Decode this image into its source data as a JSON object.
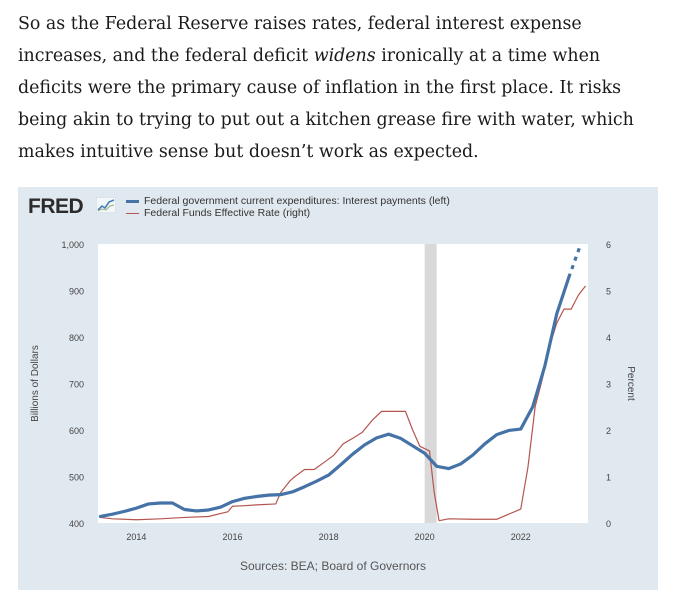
{
  "article": {
    "text_part1": "So as the Federal Reserve raises rates, federal interest expense increases, and the federal deficit ",
    "text_emphasis": "widens",
    "text_part2": " ironically at a time when deficits were the primary cause of inflation in the first place. It risks being akin to trying to put out a kitchen grease fire with water, which makes intuitive sense but doesn’t work as expected."
  },
  "figure": {
    "logo_text": "FRED",
    "logo_icon": "chart-trend-icon",
    "sources": "Sources: BEA; Board of Governors"
  },
  "chart_data": {
    "type": "line",
    "recession_shading": [
      2020.0,
      2020.25
    ],
    "xlim": [
      2013.2,
      2023.4
    ],
    "x_ticks": [
      2014,
      2016,
      2018,
      2020,
      2022
    ],
    "x_tick_labels": [
      "2014",
      "2016",
      "2018",
      "2020",
      "2022"
    ],
    "ylim_left": [
      400,
      1000
    ],
    "y_ticks_left": [
      400,
      500,
      600,
      700,
      800,
      900,
      1000
    ],
    "y_tick_labels_left": [
      "400",
      "500",
      "600",
      "700",
      "800",
      "900",
      "1,000"
    ],
    "ylabel_left": "Billions of Dollars",
    "ylim_right": [
      0,
      6
    ],
    "y_ticks_right": [
      0,
      1,
      2,
      3,
      4,
      5,
      6
    ],
    "y_tick_labels_right": [
      "0",
      "1",
      "2",
      "3",
      "4",
      "5",
      "6"
    ],
    "ylabel_right": "Percent",
    "grid": false,
    "legend_position": "top-left",
    "series": [
      {
        "name": "Federal government current expenditures: Interest payments (left)",
        "axis": "left",
        "color": "#4572a7",
        "x": [
          2013.25,
          2013.5,
          2013.75,
          2014.0,
          2014.25,
          2014.5,
          2014.75,
          2015.0,
          2015.25,
          2015.5,
          2015.75,
          2016.0,
          2016.25,
          2016.5,
          2016.75,
          2017.0,
          2017.25,
          2017.5,
          2017.75,
          2018.0,
          2018.25,
          2018.5,
          2018.75,
          2019.0,
          2019.25,
          2019.5,
          2019.75,
          2020.0,
          2020.25,
          2020.5,
          2020.75,
          2021.0,
          2021.25,
          2021.5,
          2021.75,
          2022.0,
          2022.25,
          2022.5,
          2022.75,
          2023.0
        ],
        "values": [
          414,
          419,
          425,
          432,
          441,
          443,
          443,
          429,
          426,
          428,
          434,
          446,
          453,
          457,
          460,
          461,
          467,
          478,
          490,
          503,
          525,
          548,
          568,
          583,
          591,
          582,
          566,
          550,
          522,
          517,
          527,
          546,
          570,
          590,
          599,
          602,
          650,
          737,
          850,
          928
        ],
        "projected_x": [
          2023.0,
          2023.25
        ],
        "projected_values": [
          928,
          1000
        ]
      },
      {
        "name": "Federal Funds Effective Rate (right)",
        "axis": "right",
        "color": "#b5554f",
        "x": [
          2013.25,
          2013.5,
          2013.75,
          2014.0,
          2014.5,
          2015.0,
          2015.5,
          2015.9,
          2016.0,
          2016.2,
          2016.5,
          2016.9,
          2017.0,
          2017.2,
          2017.3,
          2017.5,
          2017.7,
          2017.9,
          2018.1,
          2018.3,
          2018.5,
          2018.7,
          2018.9,
          2019.1,
          2019.4,
          2019.6,
          2019.75,
          2019.9,
          2020.1,
          2020.2,
          2020.3,
          2020.5,
          2021.0,
          2021.5,
          2022.0,
          2022.15,
          2022.3,
          2022.45,
          2022.6,
          2022.75,
          2022.9,
          2023.05,
          2023.2,
          2023.35
        ],
        "values": [
          0.12,
          0.09,
          0.08,
          0.07,
          0.09,
          0.12,
          0.14,
          0.24,
          0.36,
          0.37,
          0.39,
          0.41,
          0.65,
          0.91,
          1.0,
          1.15,
          1.15,
          1.3,
          1.45,
          1.7,
          1.82,
          1.95,
          2.2,
          2.4,
          2.4,
          2.4,
          2.0,
          1.65,
          1.55,
          0.65,
          0.05,
          0.09,
          0.08,
          0.08,
          0.3,
          1.2,
          2.5,
          3.1,
          3.8,
          4.3,
          4.6,
          4.6,
          4.9,
          5.1
        ]
      }
    ]
  }
}
